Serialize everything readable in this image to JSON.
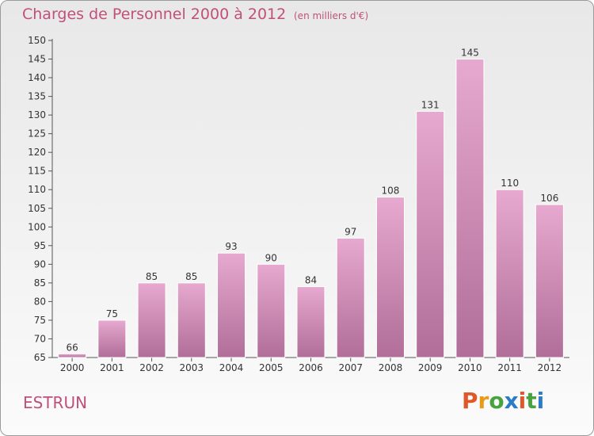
{
  "header": {
    "title": "Charges de Personnel 2000 à 2012",
    "subtitle": "(en milliers d'€)"
  },
  "footer": {
    "commune": "ESTRUN",
    "logo": "Proxiti"
  },
  "colors": {
    "accent": "#c0507a",
    "bar_top": "#e7a9cf",
    "bar_bottom": "#b06e98",
    "logo_letters": [
      "#e0582a",
      "#e79b18",
      "#48a23f",
      "#2b7bc7",
      "#e0582a",
      "#48a23f",
      "#2b7bc7"
    ]
  },
  "chart_data": {
    "type": "bar",
    "title": "Charges de Personnel 2000 à 2012",
    "subtitle": "(en milliers d'€)",
    "categories": [
      "2000",
      "2001",
      "2002",
      "2003",
      "2004",
      "2005",
      "2006",
      "2007",
      "2008",
      "2009",
      "2010",
      "2011",
      "2012"
    ],
    "values": [
      66,
      75,
      85,
      85,
      93,
      90,
      84,
      97,
      108,
      131,
      145,
      110,
      106
    ],
    "ylim": [
      65,
      150
    ],
    "yticks": [
      65,
      70,
      75,
      80,
      85,
      90,
      95,
      100,
      105,
      110,
      115,
      120,
      125,
      130,
      135,
      140,
      145,
      150
    ],
    "grid": false
  }
}
